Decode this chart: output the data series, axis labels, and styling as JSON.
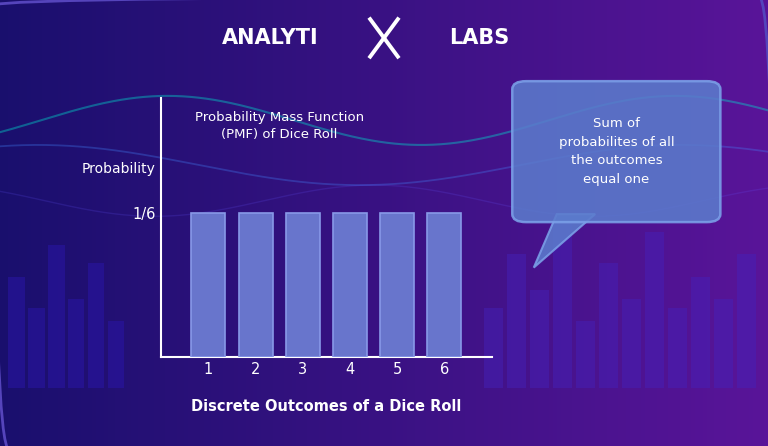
{
  "chart_title": "Probability Mass Function\n(PMF) of Dice Roll",
  "xlabel": "Discrete Outcomes of a Dice Roll",
  "ylabel": "Probability",
  "ytick_label": "1/6",
  "xtick_labels": [
    "1",
    "2",
    "3",
    "4",
    "5",
    "6"
  ],
  "bar_color": "#6875cc",
  "bar_edge_color": "#8899e8",
  "annotation_text": "Sum of\nprobabilites of all\nthe outcomes\nequal one",
  "bubble_color": "#5b7bcc",
  "bubble_border": "#7ba0e8",
  "text_color": "#ffffff",
  "bg_left_color": "#1a0f6e",
  "bg_right_color": "#5a1a9a",
  "wave1_color": "#00d4cc",
  "wave2_color": "#3366ff",
  "border_color": "#4433aa",
  "decor_bar_color_left": "#2211aa",
  "decor_bar_color_right": "#4422bb"
}
